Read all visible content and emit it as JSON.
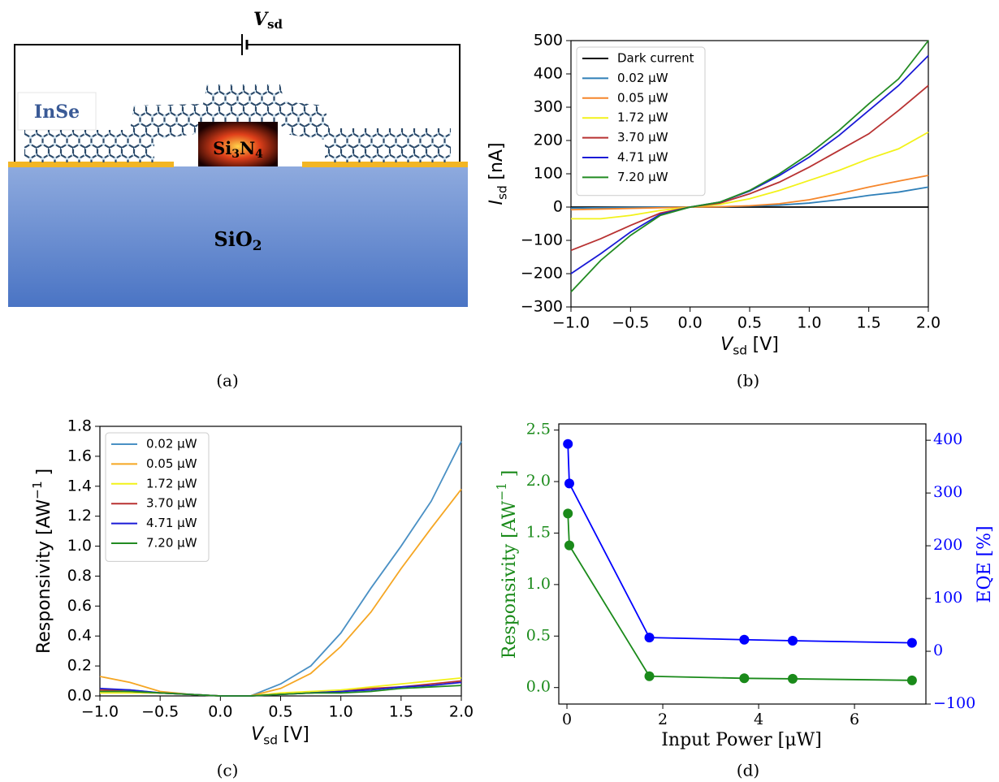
{
  "diagram": {
    "voltage_label": {
      "base": "V",
      "sub": "sd"
    },
    "flake_label": "InSe",
    "substrate": [
      "SiO",
      "2"
    ],
    "dielectric": [
      "Si",
      "3",
      "N",
      "4"
    ],
    "caption": "(a)"
  },
  "chart_data": [
    {
      "type": "line",
      "caption": "(b)",
      "xlabel": {
        "base": "V",
        "sub": "sd",
        "rest": "[V]"
      },
      "ylabel": {
        "base": "I",
        "sub": "sd",
        "rest": "[nA]"
      },
      "x": [
        -1,
        -0.75,
        -0.5,
        -0.25,
        0,
        0.25,
        0.5,
        0.75,
        1,
        1.25,
        1.5,
        1.75,
        2
      ],
      "xlim": [
        -1,
        2
      ],
      "ylim": [
        -300,
        500
      ],
      "xticks": [
        {
          "value": -1,
          "label": "−1.0"
        },
        {
          "value": -0.5,
          "label": "−0.5"
        },
        {
          "value": 0,
          "label": "0.0"
        },
        0.5,
        {
          "value": 1,
          "label": "1.0"
        },
        1.5,
        {
          "value": 2,
          "label": "2.0"
        }
      ],
      "yticks": [
        {
          "value": -300,
          "label": "−300"
        },
        {
          "value": -200,
          "label": "−200"
        },
        {
          "value": -100,
          "label": "−100"
        },
        0,
        100,
        200,
        300,
        400,
        500
      ],
      "legend": "upper left",
      "grid": false,
      "series": [
        {
          "name": "Dark current",
          "color": "#000000",
          "values": [
            0,
            0,
            0,
            0,
            0,
            0,
            0,
            0,
            0,
            0,
            0,
            0,
            0
          ]
        },
        {
          "name": "0.02 μW",
          "color": "#2e7fb8",
          "values": [
            -3,
            -2,
            -1,
            0,
            0,
            1,
            3,
            6,
            12,
            22,
            35,
            45,
            60
          ]
        },
        {
          "name": "0.05 μW",
          "color": "#f5862b",
          "values": [
            -8,
            -6,
            -4,
            -2,
            0,
            1,
            4,
            10,
            22,
            40,
            60,
            78,
            95
          ]
        },
        {
          "name": "1.72 μW",
          "color": "#f2f21a",
          "values": [
            -35,
            -35,
            -25,
            -10,
            0,
            8,
            25,
            50,
            80,
            110,
            145,
            175,
            225
          ]
        },
        {
          "name": "3.70 μW",
          "color": "#b83232",
          "values": [
            -130,
            -95,
            -55,
            -18,
            0,
            12,
            40,
            75,
            120,
            170,
            220,
            290,
            365
          ]
        },
        {
          "name": "4.71 μW",
          "color": "#1a1ad6",
          "values": [
            -200,
            -140,
            -75,
            -22,
            0,
            15,
            48,
            95,
            150,
            215,
            290,
            365,
            455
          ]
        },
        {
          "name": "7.20 μW",
          "color": "#228b22",
          "values": [
            -255,
            -160,
            -85,
            -25,
            0,
            15,
            50,
            100,
            160,
            230,
            310,
            385,
            500
          ]
        }
      ]
    },
    {
      "type": "line",
      "caption": "(c)",
      "xlabel": {
        "base": "V",
        "sub": "sd",
        "rest": "[V]"
      },
      "ylabel": {
        "base": "Responsivity [AW",
        "sup": "−1",
        "rest": "]"
      },
      "x": [
        -1,
        -0.75,
        -0.5,
        -0.25,
        0,
        0.25,
        0.5,
        0.75,
        1,
        1.25,
        1.5,
        1.75,
        2
      ],
      "xlim": [
        -1,
        2
      ],
      "ylim": [
        0,
        1.8
      ],
      "xticks": [
        {
          "value": -1,
          "label": "−1.0"
        },
        {
          "value": -0.5,
          "label": "−0.5"
        },
        {
          "value": 0,
          "label": "0.0"
        },
        0.5,
        {
          "value": 1,
          "label": "1.0"
        },
        1.5,
        {
          "value": 2,
          "label": "2.0"
        }
      ],
      "yticks": [
        {
          "value": 0,
          "label": "0.0"
        },
        0.2,
        0.4,
        0.6,
        0.8,
        {
          "value": 1,
          "label": "1.0"
        },
        1.2,
        1.4,
        1.6,
        1.8
      ],
      "legend": "upper left",
      "grid": false,
      "series": [
        {
          "name": "0.02 μW",
          "color": "#4a90c4",
          "values": [
            0.04,
            0.04,
            0.02,
            0.01,
            0,
            0,
            0.08,
            0.2,
            0.42,
            0.72,
            1,
            1.3,
            1.7
          ]
        },
        {
          "name": "0.05 μW",
          "color": "#f5a623",
          "values": [
            0.13,
            0.09,
            0.03,
            0.01,
            0,
            0,
            0.05,
            0.15,
            0.33,
            0.56,
            0.85,
            1.12,
            1.38
          ]
        },
        {
          "name": "1.72 μW",
          "color": "#f2f21a",
          "values": [
            0.02,
            0.02,
            0.02,
            0.01,
            0,
            0,
            0.02,
            0.03,
            0.04,
            0.06,
            0.08,
            0.1,
            0.12
          ]
        },
        {
          "name": "3.70 μW",
          "color": "#b83232",
          "values": [
            0.04,
            0.03,
            0.02,
            0.01,
            0,
            0,
            0.01,
            0.02,
            0.03,
            0.05,
            0.06,
            0.08,
            0.1
          ]
        },
        {
          "name": "4.71 μW",
          "color": "#1a1ad6",
          "values": [
            0.05,
            0.04,
            0.02,
            0.01,
            0,
            0,
            0.01,
            0.02,
            0.03,
            0.04,
            0.06,
            0.07,
            0.09
          ]
        },
        {
          "name": "7.20 μW",
          "color": "#228b22",
          "values": [
            0.03,
            0.03,
            0.02,
            0.01,
            0,
            0,
            0.01,
            0.02,
            0.02,
            0.03,
            0.05,
            0.06,
            0.07
          ]
        }
      ]
    },
    {
      "type": "line",
      "markers": true,
      "caption": "(d)",
      "xlabel": {
        "base": "Input Power [μW]"
      },
      "ylabel": {
        "base": "Responsivity [AW",
        "sup": "−1",
        "rest": "]"
      },
      "y2label": {
        "base": "EQE [%]"
      },
      "x": [
        0.02,
        0.05,
        1.72,
        3.7,
        4.71,
        7.2
      ],
      "xlim": [
        -0.17,
        7.49
      ],
      "ylim": [
        -0.16,
        2.56
      ],
      "y2lim": [
        -100,
        431
      ],
      "xticks": [
        0,
        2,
        4,
        6
      ],
      "yticks": [
        {
          "value": 0,
          "label": "0.0"
        },
        0.5,
        {
          "value": 1,
          "label": "1.0"
        },
        1.5,
        {
          "value": 2,
          "label": "2.0"
        },
        2.5
      ],
      "y2ticks": [
        {
          "value": -100,
          "label": "−100"
        },
        0,
        100,
        200,
        300,
        400
      ],
      "grid": false,
      "series": [
        {
          "color": "#1a8a1a",
          "values": [
            1.69,
            1.38,
            0.11,
            0.09,
            0.085,
            0.07
          ]
        },
        {
          "color": "#0000ff",
          "axis": "y2",
          "values": [
            393,
            318,
            26,
            22,
            20,
            16
          ]
        }
      ]
    }
  ]
}
